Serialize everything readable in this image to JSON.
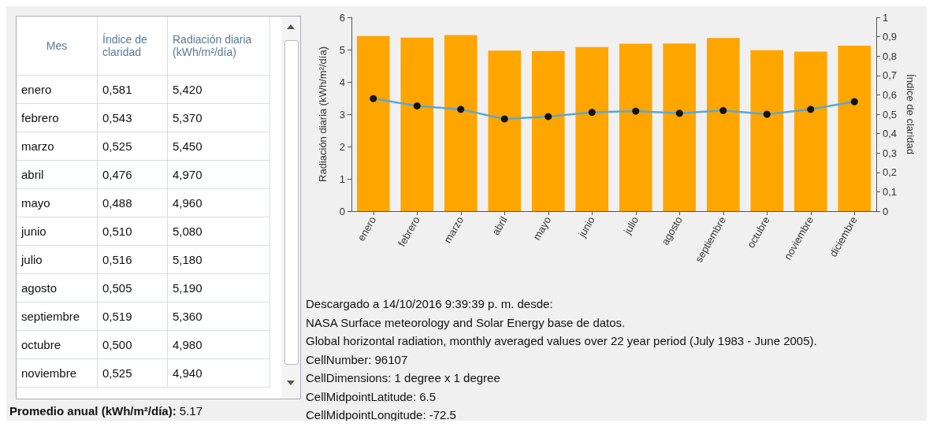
{
  "chart_data": [
    {
      "type": "other",
      "annotations": [
        "Mes",
        "Índice de claridad",
        "Radiación diaria (kWh/m²/día)",
        "enero",
        "0,581",
        "5,420",
        "febrero",
        "0,543",
        "5,370",
        "marzo",
        "0,525",
        "5,450",
        "abril",
        "0,476",
        "4,970",
        "mayo",
        "0,488",
        "4,960",
        "junio",
        "0,510",
        "5,080",
        "julio",
        "0,516",
        "5,180",
        "agosto",
        "0,505",
        "5,190",
        "septiembre",
        "0,519",
        "5,360",
        "octubre",
        "0,500",
        "4,980",
        "noviembre",
        "0,525",
        "4,940",
        "Promedio anual (kWh/m²/día): 5.17"
      ]
    },
    {
      "type": "bar",
      "categories": [
        "enero",
        "febrero",
        "marzo",
        "abril",
        "mayo",
        "junio",
        "julio",
        "agosto",
        "septiembre",
        "octubre",
        "noviembre",
        "diciembre"
      ],
      "ylabel": "Radiación diaria (kWh/m²/día)",
      "y2label": "Índice de claridad",
      "ylim": [
        0,
        6
      ],
      "yticks": [
        0,
        1,
        2,
        3,
        4,
        5,
        6
      ],
      "y2lim": [
        0,
        1
      ],
      "y2ticks": [
        0,
        {
          "value": 0.1,
          "label": "0,1"
        },
        {
          "value": 0.2,
          "label": "0,2"
        },
        {
          "value": 0.3,
          "label": "0,3"
        },
        {
          "value": 0.4,
          "label": "0,4"
        },
        {
          "value": 0.5,
          "label": "0,5"
        },
        {
          "value": 0.6,
          "label": "0,6"
        },
        {
          "value": 0.7,
          "label": "0,7"
        },
        {
          "value": 0.8,
          "label": "0,8"
        },
        {
          "value": 0.9,
          "label": "0,9"
        },
        1
      ],
      "grid": false,
      "marker": "circle",
      "line_style": "solid",
      "series": [
        {
          "color": "#ffa500",
          "values": [
            5.42,
            5.37,
            5.45,
            4.97,
            4.96,
            5.08,
            5.18,
            5.19,
            5.36,
            4.98,
            4.94,
            5.12
          ]
        },
        {
          "type": "line",
          "axis": "y2",
          "color": "#5ba7d6",
          "values": [
            0.581,
            0.543,
            0.525,
            0.476,
            0.488,
            0.51,
            0.516,
            0.505,
            0.519,
            0.5,
            0.525,
            0.565
          ]
        }
      ],
      "annotations": [
        "Descargado a 14/10/2016 9:39:39 p. m. desde:",
        "NASA Surface meteorology and Solar Energy base de datos.",
        "Global horizontal radiation, monthly averaged values over 22 year period (July 1983 - June 2005).",
        "CellNumber: 96107",
        "CellDimensions: 1 degree x 1 degree",
        "CellMidpointLatitude: 6.5",
        "CellMidpointLongitude: -72.5"
      ]
    }
  ]
}
